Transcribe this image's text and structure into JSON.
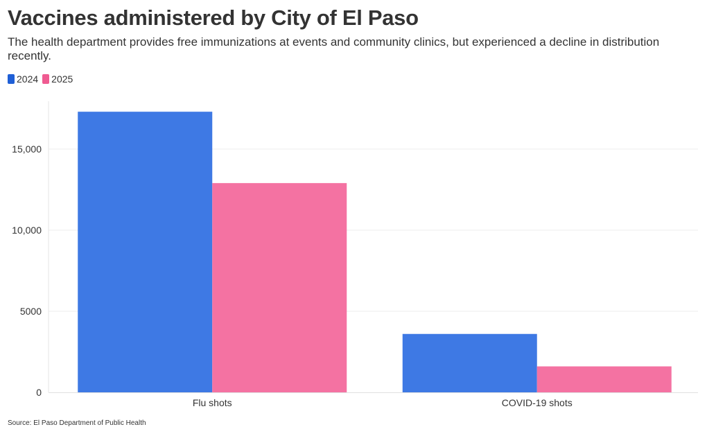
{
  "chart_data": {
    "type": "bar",
    "title": "Vaccines administered by City of El Paso",
    "subtitle": "The health department provides free immunizations at events and community clinics, but experienced a decline in distribution recently.",
    "categories": [
      "Flu shots",
      "COVID-19 shots"
    ],
    "series": [
      {
        "name": "2024",
        "color": "#3e79e4",
        "legend_color": "#1f5fd6",
        "values": [
          17300,
          3600
        ]
      },
      {
        "name": "2025",
        "color": "#f472a2",
        "legend_color": "#ef5b91",
        "values": [
          12900,
          1600
        ]
      }
    ],
    "y_ticks": [
      0,
      5000,
      10000,
      15000
    ],
    "y_tick_labels": [
      "0",
      "5000",
      "10,000",
      "15,000"
    ],
    "ylim": [
      0,
      18000
    ],
    "xlabel": "",
    "ylabel": "",
    "grid": true,
    "legend_position": "top-left",
    "source": "Source: El Paso Department of Public Health"
  }
}
